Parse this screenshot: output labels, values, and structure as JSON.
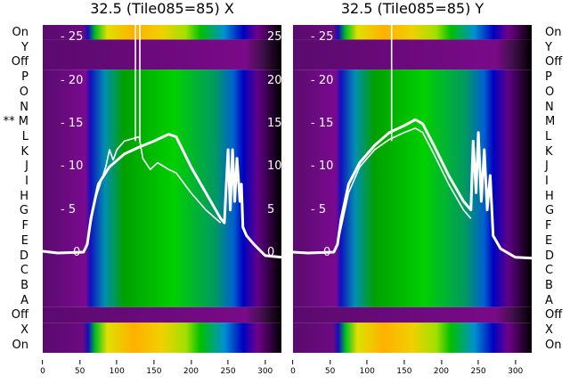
{
  "chart_data": [
    {
      "type": "heatmap",
      "title": "32.5 (Tile085=85) X",
      "row_labels": [
        "On",
        "Y",
        "Off",
        "P",
        "O",
        "N",
        "** M",
        "L",
        "K",
        "J",
        "I",
        "H",
        "G",
        "F",
        "E",
        "D",
        "C",
        "B",
        "A",
        "Off",
        "X",
        "On"
      ],
      "xticks": [
        0,
        50,
        100,
        150,
        200,
        250,
        300
      ],
      "yticks": [
        0,
        5,
        10,
        15,
        20,
        25
      ],
      "xlim": [
        0,
        322
      ],
      "ylim": [
        -11.6,
        26.5
      ],
      "series": [
        {
          "name": "trace-main",
          "x": [
            0,
            20,
            55,
            60,
            65,
            75,
            90,
            110,
            130,
            150,
            170,
            180,
            200,
            220,
            240,
            245,
            250,
            253,
            256,
            259,
            262,
            266,
            268,
            270,
            275,
            285,
            300,
            322
          ],
          "y": [
            0.2,
            0,
            0.1,
            1,
            4,
            8,
            10,
            11.5,
            12.3,
            13,
            13.8,
            13.5,
            10,
            7,
            4,
            3.5,
            12,
            5,
            12,
            6,
            11,
            6,
            8,
            3,
            2,
            1,
            -0.3,
            -0.5
          ]
        },
        {
          "name": "trace-secondary",
          "x": [
            60,
            70,
            85,
            90,
            95,
            100,
            110,
            130,
            135,
            145,
            155,
            170,
            180,
            200,
            220,
            240
          ],
          "y": [
            1,
            6,
            10,
            12,
            10.8,
            12,
            13,
            13.5,
            11,
            9.7,
            10.5,
            9.7,
            9.3,
            7,
            5,
            3.5
          ]
        },
        {
          "name": "spike-1",
          "x": [
            125,
            125
          ],
          "y": [
            13,
            27
          ]
        },
        {
          "name": "spike-2",
          "x": [
            131,
            131
          ],
          "y": [
            13,
            27
          ]
        }
      ]
    },
    {
      "type": "heatmap",
      "title": "32.5 (Tile085=85) Y",
      "row_labels": [
        "On",
        "Y",
        "Off",
        "P",
        "O",
        "N",
        "M",
        "L",
        "K",
        "J",
        "I",
        "H",
        "G",
        "F",
        "E",
        "D",
        "C",
        "B",
        "A",
        "Off",
        "X",
        "On"
      ],
      "xticks": [
        0,
        50,
        100,
        150,
        200,
        250,
        300
      ],
      "yticks": [
        0,
        5,
        10,
        15,
        20,
        25
      ],
      "xlim": [
        0,
        322
      ],
      "ylim": [
        -11.6,
        26.5
      ],
      "series": [
        {
          "name": "trace-main",
          "x": [
            0,
            20,
            55,
            60,
            65,
            75,
            90,
            110,
            130,
            150,
            165,
            175,
            190,
            210,
            230,
            240,
            243,
            247,
            250,
            254,
            258,
            262,
            266,
            270,
            280,
            300,
            322
          ],
          "y": [
            0.1,
            0,
            0.1,
            1,
            4,
            8,
            10.5,
            12.5,
            14,
            14.8,
            15.5,
            15,
            12.5,
            9,
            6,
            5,
            13,
            7,
            14,
            6,
            12,
            5,
            9,
            2,
            0.5,
            -0.5,
            -0.6
          ]
        },
        {
          "name": "trace-secondary",
          "x": [
            60,
            75,
            90,
            110,
            130,
            150,
            165,
            175,
            190,
            210,
            230,
            240
          ],
          "y": [
            1,
            7,
            10,
            12,
            13.2,
            14,
            14.5,
            14,
            11.5,
            8,
            5,
            4
          ]
        },
        {
          "name": "spike-1",
          "x": [
            133,
            133
          ],
          "y": [
            13,
            27
          ]
        }
      ]
    }
  ]
}
